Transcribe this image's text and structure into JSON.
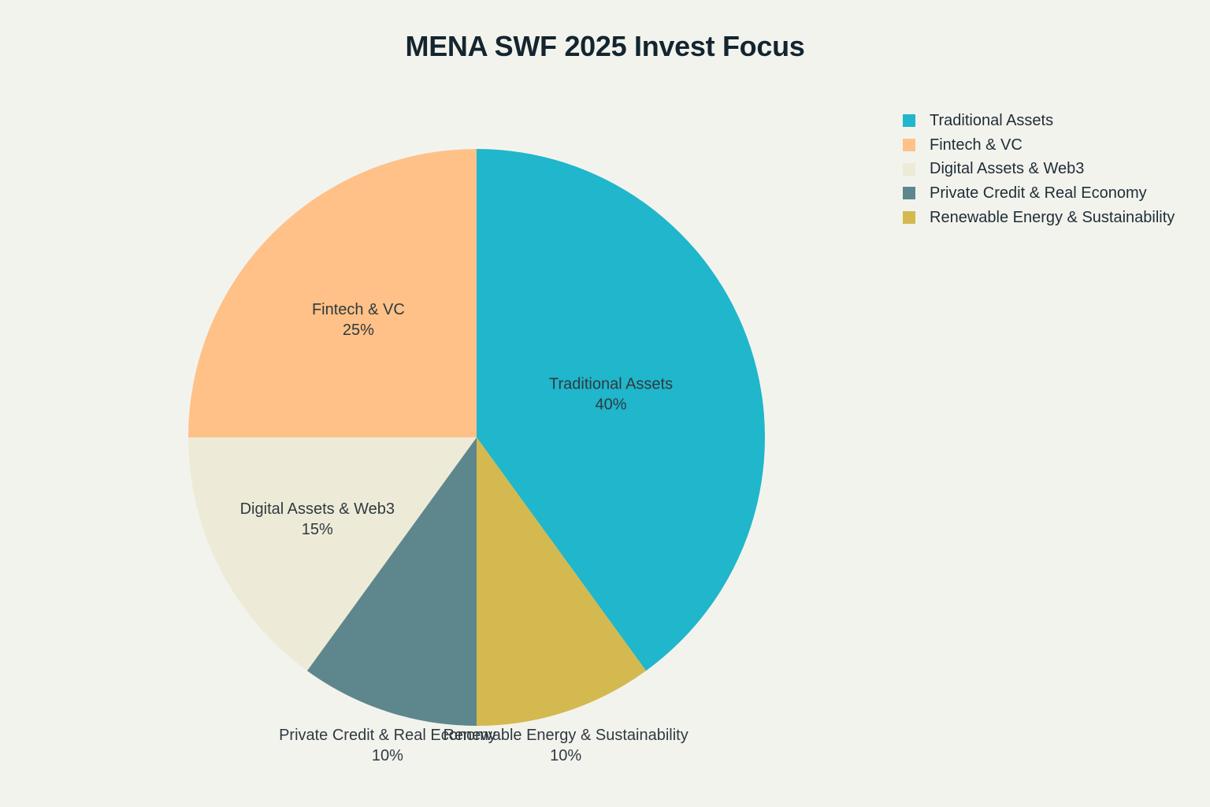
{
  "chart_data": {
    "type": "pie",
    "title": "MENA SWF 2025 Invest Focus",
    "legend_position": "top-right",
    "slices": [
      {
        "label": "Traditional Assets",
        "value": 40,
        "value_label": "40%",
        "color": "#20b6cb"
      },
      {
        "label": "Renewable Energy & Sustainability",
        "value": 10,
        "value_label": "10%",
        "color": "#d3b94f"
      },
      {
        "label": "Private Credit & Real Economy",
        "value": 10,
        "value_label": "10%",
        "color": "#5e878d"
      },
      {
        "label": "Digital Assets & Web3",
        "value": 15,
        "value_label": "15%",
        "color": "#edebd7"
      },
      {
        "label": "Fintech & VC",
        "value": 25,
        "value_label": "25%",
        "color": "#ffc187"
      }
    ],
    "legend": [
      {
        "label": "Traditional Assets",
        "color": "#20b6cb"
      },
      {
        "label": "Fintech & VC",
        "color": "#ffc187"
      },
      {
        "label": "Digital Assets & Web3",
        "color": "#edebd7"
      },
      {
        "label": "Private Credit & Real Economy",
        "color": "#5e878d"
      },
      {
        "label": "Renewable Energy & Sustainability",
        "color": "#d3b94f"
      }
    ]
  }
}
